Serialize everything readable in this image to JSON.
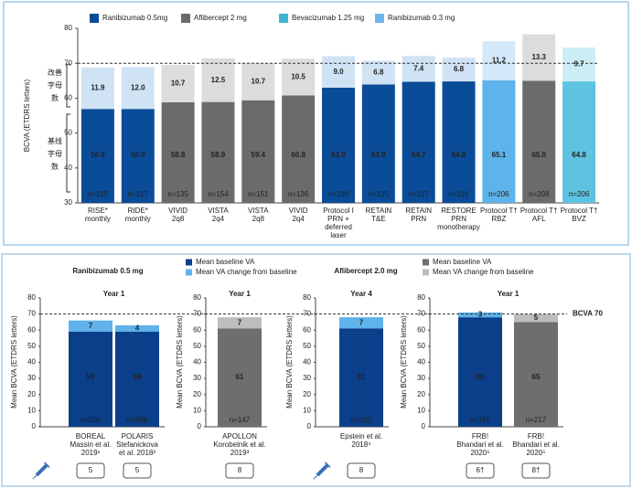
{
  "chart_data": [
    {
      "type": "bar",
      "stacked": true,
      "ylabel": "BCVA (ETDRS letters)",
      "ylim": [
        30,
        80
      ],
      "yticks": [
        30,
        40,
        50,
        60,
        70,
        80
      ],
      "reference": 70,
      "improvement_label": [
        "改善",
        "字母",
        "数"
      ],
      "baseline_label": [
        "基线",
        "字母",
        "数"
      ],
      "legend": [
        {
          "name": "Ranibizumab  0.5mg",
          "color": "#0a4c97"
        },
        {
          "name": "Aflibercept 2 mg",
          "color": "#6b6b6b"
        },
        {
          "name": "Bevacizumab 1.25 mg",
          "color": "#3fb3d4"
        },
        {
          "name": "Ranibizumab  0.3 mg",
          "color": "#6ab7ec"
        }
      ],
      "categories": [
        [
          "RISE*",
          "monthly"
        ],
        [
          "RIDE*",
          "monthly"
        ],
        [
          "VIVID",
          "2q8"
        ],
        [
          "VISTA",
          "2q4"
        ],
        [
          "VISTA",
          "2q8"
        ],
        [
          "VIVID",
          "2q4"
        ],
        [
          "Protocol I",
          "PRN +",
          "deferred",
          "laser"
        ],
        [
          "RETAIN",
          "T&E"
        ],
        [
          "RETAIN",
          "PRN"
        ],
        [
          "RESTORE",
          "PRN",
          "monotherapy"
        ],
        [
          "Protocol T†",
          "RBZ"
        ],
        [
          "Protocol T†",
          "AFL"
        ],
        [
          "Protocol T†",
          "BVZ"
        ]
      ],
      "baseline": [
        56.9,
        56.9,
        58.8,
        58.9,
        59.4,
        60.8,
        63.0,
        63.9,
        64.7,
        64.8,
        65.1,
        65.0,
        64.8
      ],
      "baseline_value_labels": [
        "56.9",
        "56.9",
        "58.8",
        "58.9",
        "59.4",
        "60.8",
        "63.0",
        "63.9",
        "64.7",
        "64.8",
        "65.1",
        "65.0",
        "64.8"
      ],
      "change": [
        11.9,
        12.0,
        10.7,
        12.5,
        10.7,
        10.5,
        9.0,
        6.8,
        7.4,
        6.8,
        11.2,
        13.3,
        9.7
      ],
      "change_value_labels": [
        "11.9",
        "12.0",
        "10.7",
        "12.5",
        "10.7",
        "10.5",
        "9.0",
        "6.8",
        "7.4",
        "6.8",
        "11.2",
        "13.3",
        "9.7"
      ],
      "baseline_colors": [
        "#0a4c97",
        "#0a4c97",
        "#6b6b6b",
        "#6b6b6b",
        "#6b6b6b",
        "#6b6b6b",
        "#0a4c97",
        "#0a4c97",
        "#0a4c97",
        "#0a4c97",
        "#5db3ea",
        "#6b6b6b",
        "#5ec3e0"
      ],
      "change_colors": [
        "#cfe3f5",
        "#cfe3f5",
        "#dcdcdc",
        "#dcdcdc",
        "#dcdcdc",
        "#dcdcdc",
        "#cfe3f5",
        "#cfe3f5",
        "#cfe3f5",
        "#cfe3f5",
        "#d3e9f9",
        "#dcdcdc",
        "#ccedf6"
      ],
      "n_labels": [
        "n=125",
        "n=127",
        "n=135",
        "n=154",
        "n=151",
        "n=136",
        "n=188",
        "n=125",
        "n=117",
        "n=116",
        "n=206",
        "n=208",
        "n=206"
      ]
    },
    {
      "type": "bar",
      "stacked": true,
      "title": "Year 1",
      "ylabel": "Mean BCVA (ETDRS letters)",
      "ylim": [
        0,
        80
      ],
      "yticks": [
        0,
        10,
        20,
        30,
        40,
        50,
        60,
        70,
        80
      ],
      "reference": 70,
      "categories": [
        [
          "BOREAL",
          "Massin et al.",
          "2019¹"
        ],
        [
          "POLARIS",
          "Stefanickova",
          "et al. 2018²"
        ]
      ],
      "series": [
        {
          "color": "#0b3f8a",
          "values": [
            59,
            59
          ]
        },
        {
          "color": "#5fb3ea",
          "values": [
            7,
            4
          ]
        }
      ],
      "n_labels": [
        "n=205",
        "n=568"
      ],
      "boxes": [
        "5",
        "5"
      ]
    },
    {
      "type": "bar",
      "stacked": true,
      "title": "Year 1",
      "ylabel": "Mean BCVA (ETDRS letters)",
      "ylim": [
        0,
        80
      ],
      "yticks": [
        0,
        10,
        20,
        30,
        40,
        50,
        60,
        70,
        80
      ],
      "reference": 70,
      "categories": [
        [
          "APOLLON",
          "Korobelnik et al.",
          "2019³"
        ]
      ],
      "series": [
        {
          "color": "#6e6e6e",
          "values": [
            61
          ]
        },
        {
          "color": "#bdbdbd",
          "values": [
            7
          ]
        }
      ],
      "n_labels": [
        "n=147"
      ],
      "boxes": [
        "8"
      ]
    },
    {
      "type": "bar",
      "stacked": true,
      "title": "Year 4",
      "ylabel": "Mean BCVA (ETDRS letters)",
      "ylim": [
        0,
        80
      ],
      "yticks": [
        0,
        10,
        20,
        30,
        40,
        50,
        60,
        70,
        80
      ],
      "reference": 70,
      "categories": [
        [
          "Epstein et al.",
          "2018⁴"
        ]
      ],
      "series": [
        {
          "color": "#0b3f8a",
          "values": [
            61
          ]
        },
        {
          "color": "#5fb3ea",
          "values": [
            7
          ]
        }
      ],
      "n_labels": [
        "n=102"
      ],
      "boxes": [
        "8"
      ]
    },
    {
      "type": "bar",
      "stacked": true,
      "title": "Year 1",
      "ylabel": "Mean BCVA (ETDRS letters)",
      "ylim": [
        0,
        80
      ],
      "yticks": [
        0,
        10,
        20,
        30,
        40,
        50,
        60,
        70,
        80
      ],
      "reference": 70,
      "categories": [
        [
          "FRB!",
          "Bhandari et al.",
          "2020⁵"
        ],
        [
          "FRB!",
          "Bhandari et al.",
          "2020⁵"
        ]
      ],
      "series": [
        {
          "color": "#0b3f8a",
          "values": [
            68,
            65
          ]
        },
        {
          "color": "#5fb3ea",
          "values": [
            3,
            5
          ]
        }
      ],
      "bar_colors_override": [
        [
          "#0b3f8a",
          "#5fb3ea"
        ],
        [
          "#6e6e6e",
          "#bdbdbd"
        ]
      ],
      "n_labels": [
        "n=166",
        "n=217"
      ],
      "boxes": [
        "6†",
        "8†"
      ]
    }
  ],
  "bottom": {
    "headings": [
      "Ranibizumab 0.5 mg",
      "Aflibercept 2.0 mg"
    ],
    "heading_colors": [
      "#1f4e9a",
      "#7a7a7a"
    ],
    "legends": [
      [
        {
          "name": "Mean baseline VA",
          "color": "#0b3f8a"
        },
        {
          "name": "Mean VA change from baseline",
          "color": "#5fb3ea"
        }
      ],
      [
        {
          "name": "Mean baseline VA",
          "color": "#6e6e6e"
        },
        {
          "name": "Mean VA change from baseline",
          "color": "#bdbdbd"
        }
      ]
    ],
    "reference_label": "BCVA 70"
  }
}
